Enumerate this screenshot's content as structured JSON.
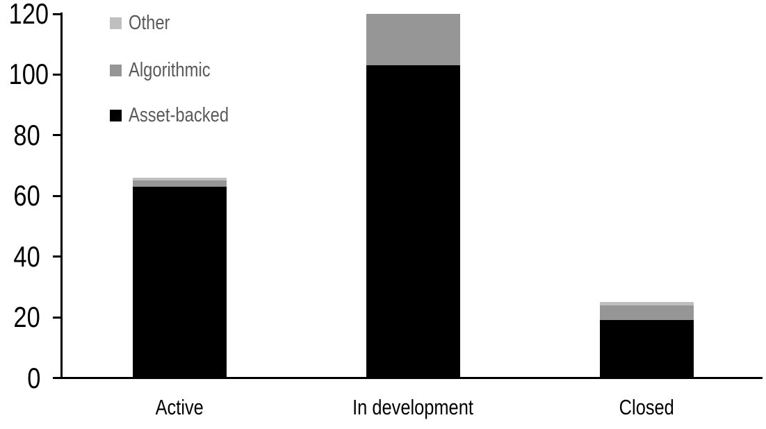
{
  "chart_data": {
    "type": "bar",
    "stacked": true,
    "title": "",
    "xlabel": "",
    "ylabel": "",
    "categories": [
      "Active",
      "In development",
      "Closed"
    ],
    "series": [
      {
        "name": "Asset-backed",
        "color": "#000000",
        "values": [
          63,
          103,
          19
        ]
      },
      {
        "name": "Algorithmic",
        "color": "#969696",
        "values": [
          2,
          17,
          5
        ]
      },
      {
        "name": "Other",
        "color": "#bfbfbf",
        "values": [
          1,
          0,
          1
        ]
      }
    ],
    "totals": [
      66,
      120,
      25
    ],
    "y_axis": {
      "min": 0,
      "max": 120,
      "tick_step": 20,
      "tick_labels": [
        "0",
        "20",
        "40",
        "60",
        "80",
        "100",
        "120"
      ]
    },
    "grid": false,
    "legend_position": "top-left",
    "legend_order_top_to_bottom": [
      "Other",
      "Algorithmic",
      "Asset-backed"
    ],
    "legend_text_color": "#595959",
    "axis_color": "#000000"
  }
}
